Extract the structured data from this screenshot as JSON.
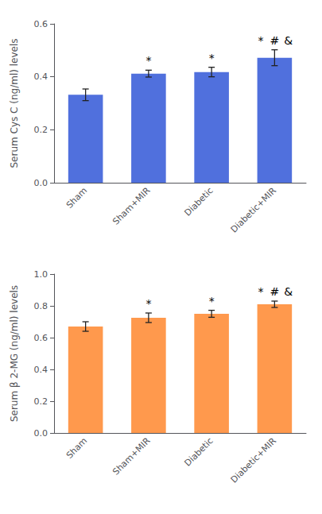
{
  "chart_data": [
    {
      "type": "bar",
      "ylabel": "Serum Cys C (ng/ml) levels",
      "categories": [
        "Sham",
        "Sham+MIR",
        "Diabetic",
        "Diabetic+MIR"
      ],
      "values": [
        0.332,
        0.412,
        0.418,
        0.472
      ],
      "errors": [
        0.022,
        0.013,
        0.018,
        0.03
      ],
      "ylim": [
        0.0,
        0.6
      ],
      "yticks": [
        {
          "value": 0,
          "label": "0.0"
        },
        0.2,
        0.4,
        0.6
      ],
      "annotations": [
        {
          "category": "Sham+MIR",
          "text": "*"
        },
        {
          "category": "Diabetic",
          "text": "*"
        },
        {
          "category": "Diabetic+MIR",
          "text": "*"
        },
        {
          "category": "Diabetic+MIR",
          "text": "#"
        },
        {
          "category": "Diabetic+MIR",
          "text": "&"
        }
      ],
      "grid": false
    },
    {
      "type": "bar",
      "ylabel": "Serum β 2-MG (ng/ml) levels",
      "categories": [
        "Sham",
        "Sham+MIR",
        "Diabetic",
        "Diabetic+MIR"
      ],
      "values": [
        0.67,
        0.725,
        0.75,
        0.81
      ],
      "errors": [
        0.03,
        0.03,
        0.022,
        0.02
      ],
      "ylim": [
        0.0,
        1.0
      ],
      "yticks": [
        {
          "value": 0,
          "label": "0.0"
        },
        0.2,
        0.4,
        0.6,
        0.8,
        {
          "value": 1,
          "label": "1.0"
        }
      ],
      "annotations": [
        {
          "category": "Sham+MIR",
          "text": "*"
        },
        {
          "category": "Diabetic",
          "text": "*"
        },
        {
          "category": "Diabetic+MIR",
          "text": "*"
        },
        {
          "category": "Diabetic+MIR",
          "text": "#"
        },
        {
          "category": "Diabetic+MIR",
          "text": "&"
        }
      ],
      "grid": false
    }
  ]
}
